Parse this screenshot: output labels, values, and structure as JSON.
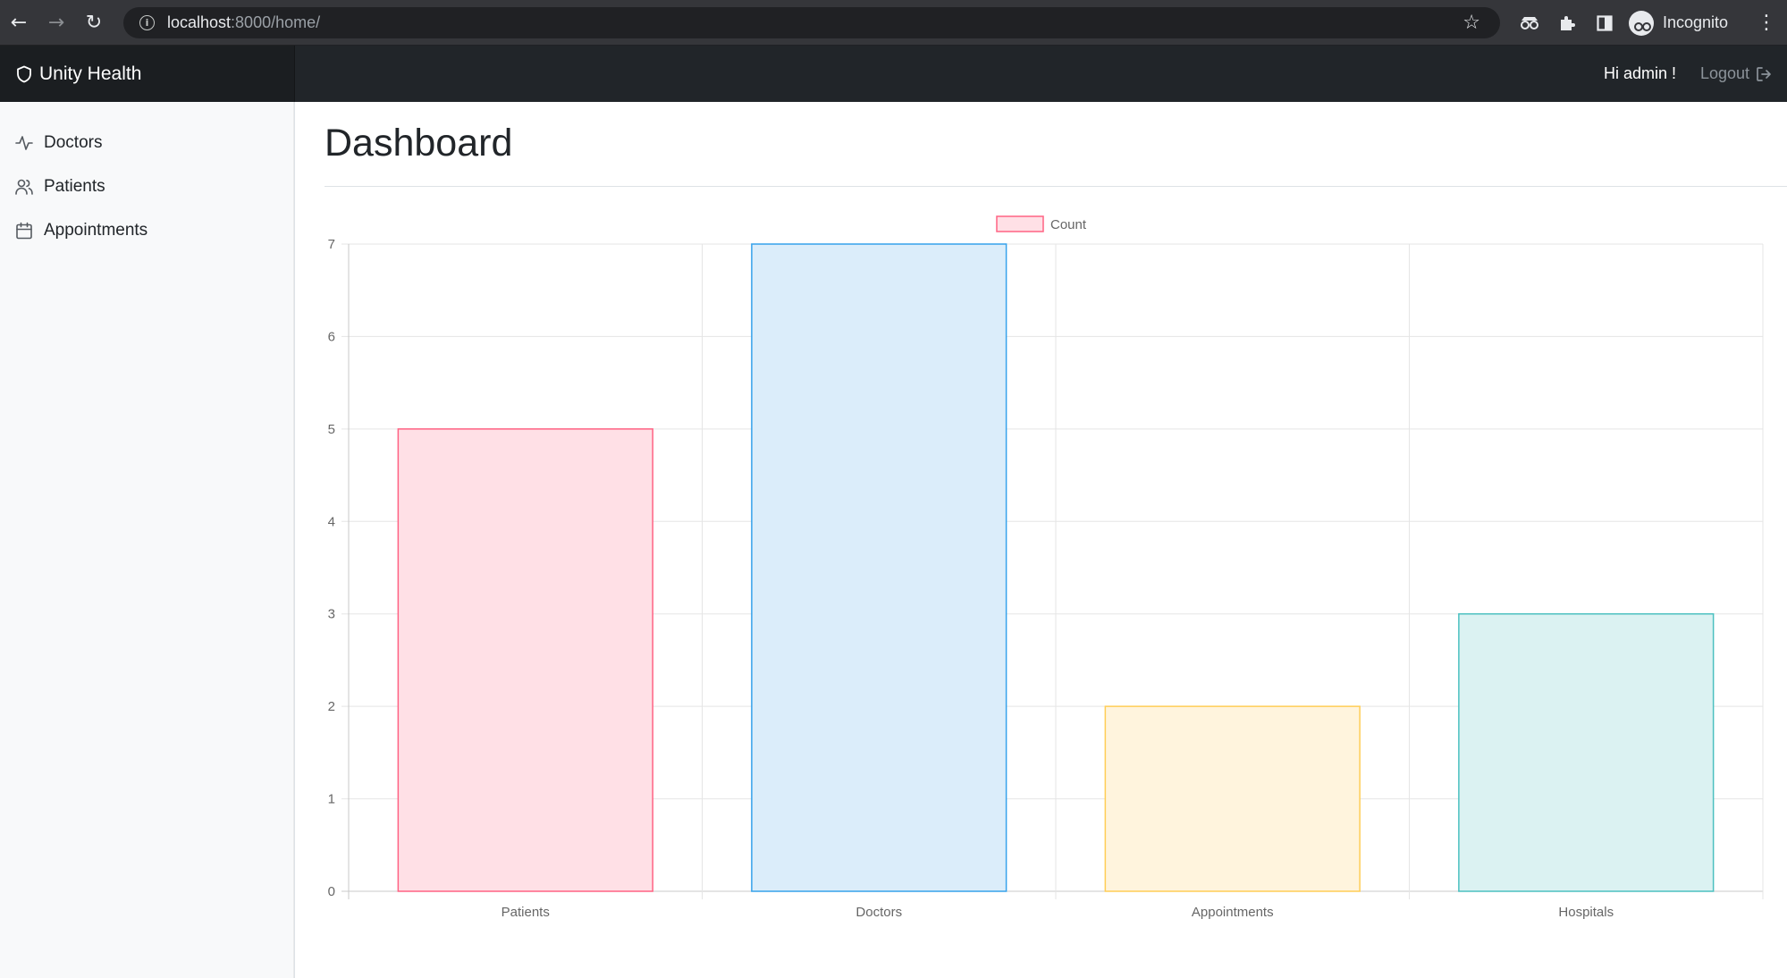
{
  "browser": {
    "url_host": "localhost",
    "url_rest": ":8000/home/",
    "profile_label": "Incognito"
  },
  "navbar": {
    "brand": "Unity Health",
    "greeting": "Hi admin !",
    "logout_label": "Logout"
  },
  "sidebar": {
    "items": [
      {
        "label": "Doctors",
        "icon": "activity-icon"
      },
      {
        "label": "Patients",
        "icon": "users-icon"
      },
      {
        "label": "Appointments",
        "icon": "calendar-icon"
      }
    ]
  },
  "main": {
    "title": "Dashboard"
  },
  "chart_data": {
    "type": "bar",
    "categories": [
      "Patients",
      "Doctors",
      "Appointments",
      "Hospitals"
    ],
    "series": [
      {
        "name": "Count",
        "values": [
          5,
          7,
          2,
          3
        ]
      }
    ],
    "colors": {
      "fills": [
        "#ffe0e6",
        "#dbedfa",
        "#fff4dd",
        "#dbf2f2"
      ],
      "borders": [
        "#ff6384",
        "#36a2eb",
        "#ffcd56",
        "#4bc0c0"
      ]
    },
    "ylim": [
      0,
      7
    ],
    "yticks": [
      0,
      1,
      2,
      3,
      4,
      5,
      6,
      7
    ],
    "grid": true,
    "legend_position": "top-center"
  }
}
